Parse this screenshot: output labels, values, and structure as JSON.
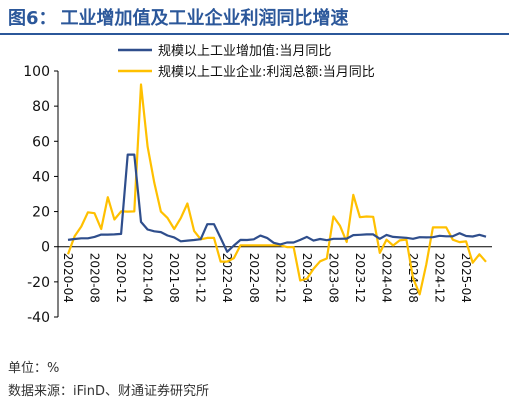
{
  "header": {
    "fig_label": "图6：",
    "title": "工业增加值及工业企业利润同比增速"
  },
  "footer": {
    "unit": "单位：%",
    "source": "数据来源：iFinD、财通证券研究所"
  },
  "colors": {
    "title": "#2b579a",
    "series1": "#2f4e8c",
    "series2": "#ffc000"
  },
  "chart_data": {
    "type": "line",
    "title": "",
    "xlabel": "",
    "ylabel": "",
    "ylim": [
      -40,
      100
    ],
    "yticks": [
      -40,
      -20,
      0,
      20,
      40,
      60,
      80,
      100
    ],
    "grid": false,
    "legend_position": "top-right",
    "x": [
      "2020-04",
      "2020-05",
      "2020-06",
      "2020-07",
      "2020-08",
      "2020-09",
      "2020-10",
      "2020-11",
      "2020-12",
      "2021-01",
      "2021-02",
      "2021-03",
      "2021-04",
      "2021-05",
      "2021-06",
      "2021-07",
      "2021-08",
      "2021-09",
      "2021-10",
      "2021-11",
      "2021-12",
      "2022-01",
      "2022-02",
      "2022-03",
      "2022-04",
      "2022-05",
      "2022-06",
      "2022-07",
      "2022-08",
      "2022-09",
      "2022-10",
      "2022-11",
      "2022-12",
      "2023-01",
      "2023-02",
      "2023-03",
      "2023-04",
      "2023-05",
      "2023-06",
      "2023-07",
      "2023-08",
      "2023-09",
      "2023-10",
      "2023-11",
      "2023-12",
      "2024-01",
      "2024-02",
      "2024-03",
      "2024-04",
      "2024-05",
      "2024-06",
      "2024-07",
      "2024-08",
      "2024-09",
      "2024-10",
      "2024-11",
      "2024-12",
      "2025-01",
      "2025-02",
      "2025-03",
      "2025-04",
      "2025-05",
      "2025-06",
      "2025-07"
    ],
    "xtick_labels": [
      "2020-04",
      "2020-08",
      "2020-12",
      "2021-04",
      "2021-08",
      "2021-12",
      "2022-04",
      "2022-08",
      "2022-12",
      "2023-04",
      "2023-08",
      "2023-12",
      "2024-04",
      "2024-08",
      "2024-12",
      "2025-04"
    ],
    "series": [
      {
        "name": "规模以上工业增加值:当月同比",
        "values": [
          3.9,
          4.4,
          4.8,
          4.8,
          5.6,
          6.9,
          6.9,
          7.0,
          7.3,
          52.4,
          52.4,
          14.1,
          9.8,
          8.8,
          8.3,
          6.4,
          5.3,
          3.1,
          3.5,
          3.8,
          4.3,
          12.8,
          12.8,
          5.0,
          -2.9,
          0.7,
          3.9,
          3.8,
          4.2,
          6.3,
          5.0,
          2.2,
          1.3,
          2.4,
          2.4,
          3.9,
          5.6,
          3.5,
          4.4,
          3.7,
          4.5,
          4.5,
          4.6,
          6.6,
          6.8,
          7.0,
          7.0,
          4.5,
          6.7,
          5.6,
          5.3,
          5.1,
          4.5,
          5.4,
          5.3,
          5.4,
          6.2,
          5.9,
          5.9,
          7.7,
          6.1,
          5.8,
          6.8,
          5.7
        ]
      },
      {
        "name": "规模以上工业企业:利润总额:当月同比",
        "values": [
          -4.3,
          6.0,
          11.5,
          19.6,
          19.1,
          10.1,
          28.2,
          15.5,
          20.1,
          20.0,
          20.1,
          92.3,
          57.0,
          36.4,
          20.0,
          16.4,
          10.1,
          16.3,
          24.6,
          9.0,
          4.2,
          5.0,
          5.0,
          -8.5,
          -8.5,
          -6.5,
          0.8,
          0.8,
          0.8,
          0.8,
          0.8,
          0.8,
          0.8,
          -0.2,
          -0.2,
          -19.2,
          -18.2,
          -12.6,
          -8.3,
          -6.7,
          17.2,
          11.9,
          2.7,
          29.5,
          16.8,
          17.2,
          17.0,
          -3.5,
          4.0,
          0.7,
          3.6,
          4.1,
          -17.8,
          -27.1,
          -10.0,
          11.0,
          11.0,
          11.0,
          4.0,
          2.6,
          3.0,
          -9.1,
          -4.3,
          -8.6
        ]
      }
    ]
  }
}
